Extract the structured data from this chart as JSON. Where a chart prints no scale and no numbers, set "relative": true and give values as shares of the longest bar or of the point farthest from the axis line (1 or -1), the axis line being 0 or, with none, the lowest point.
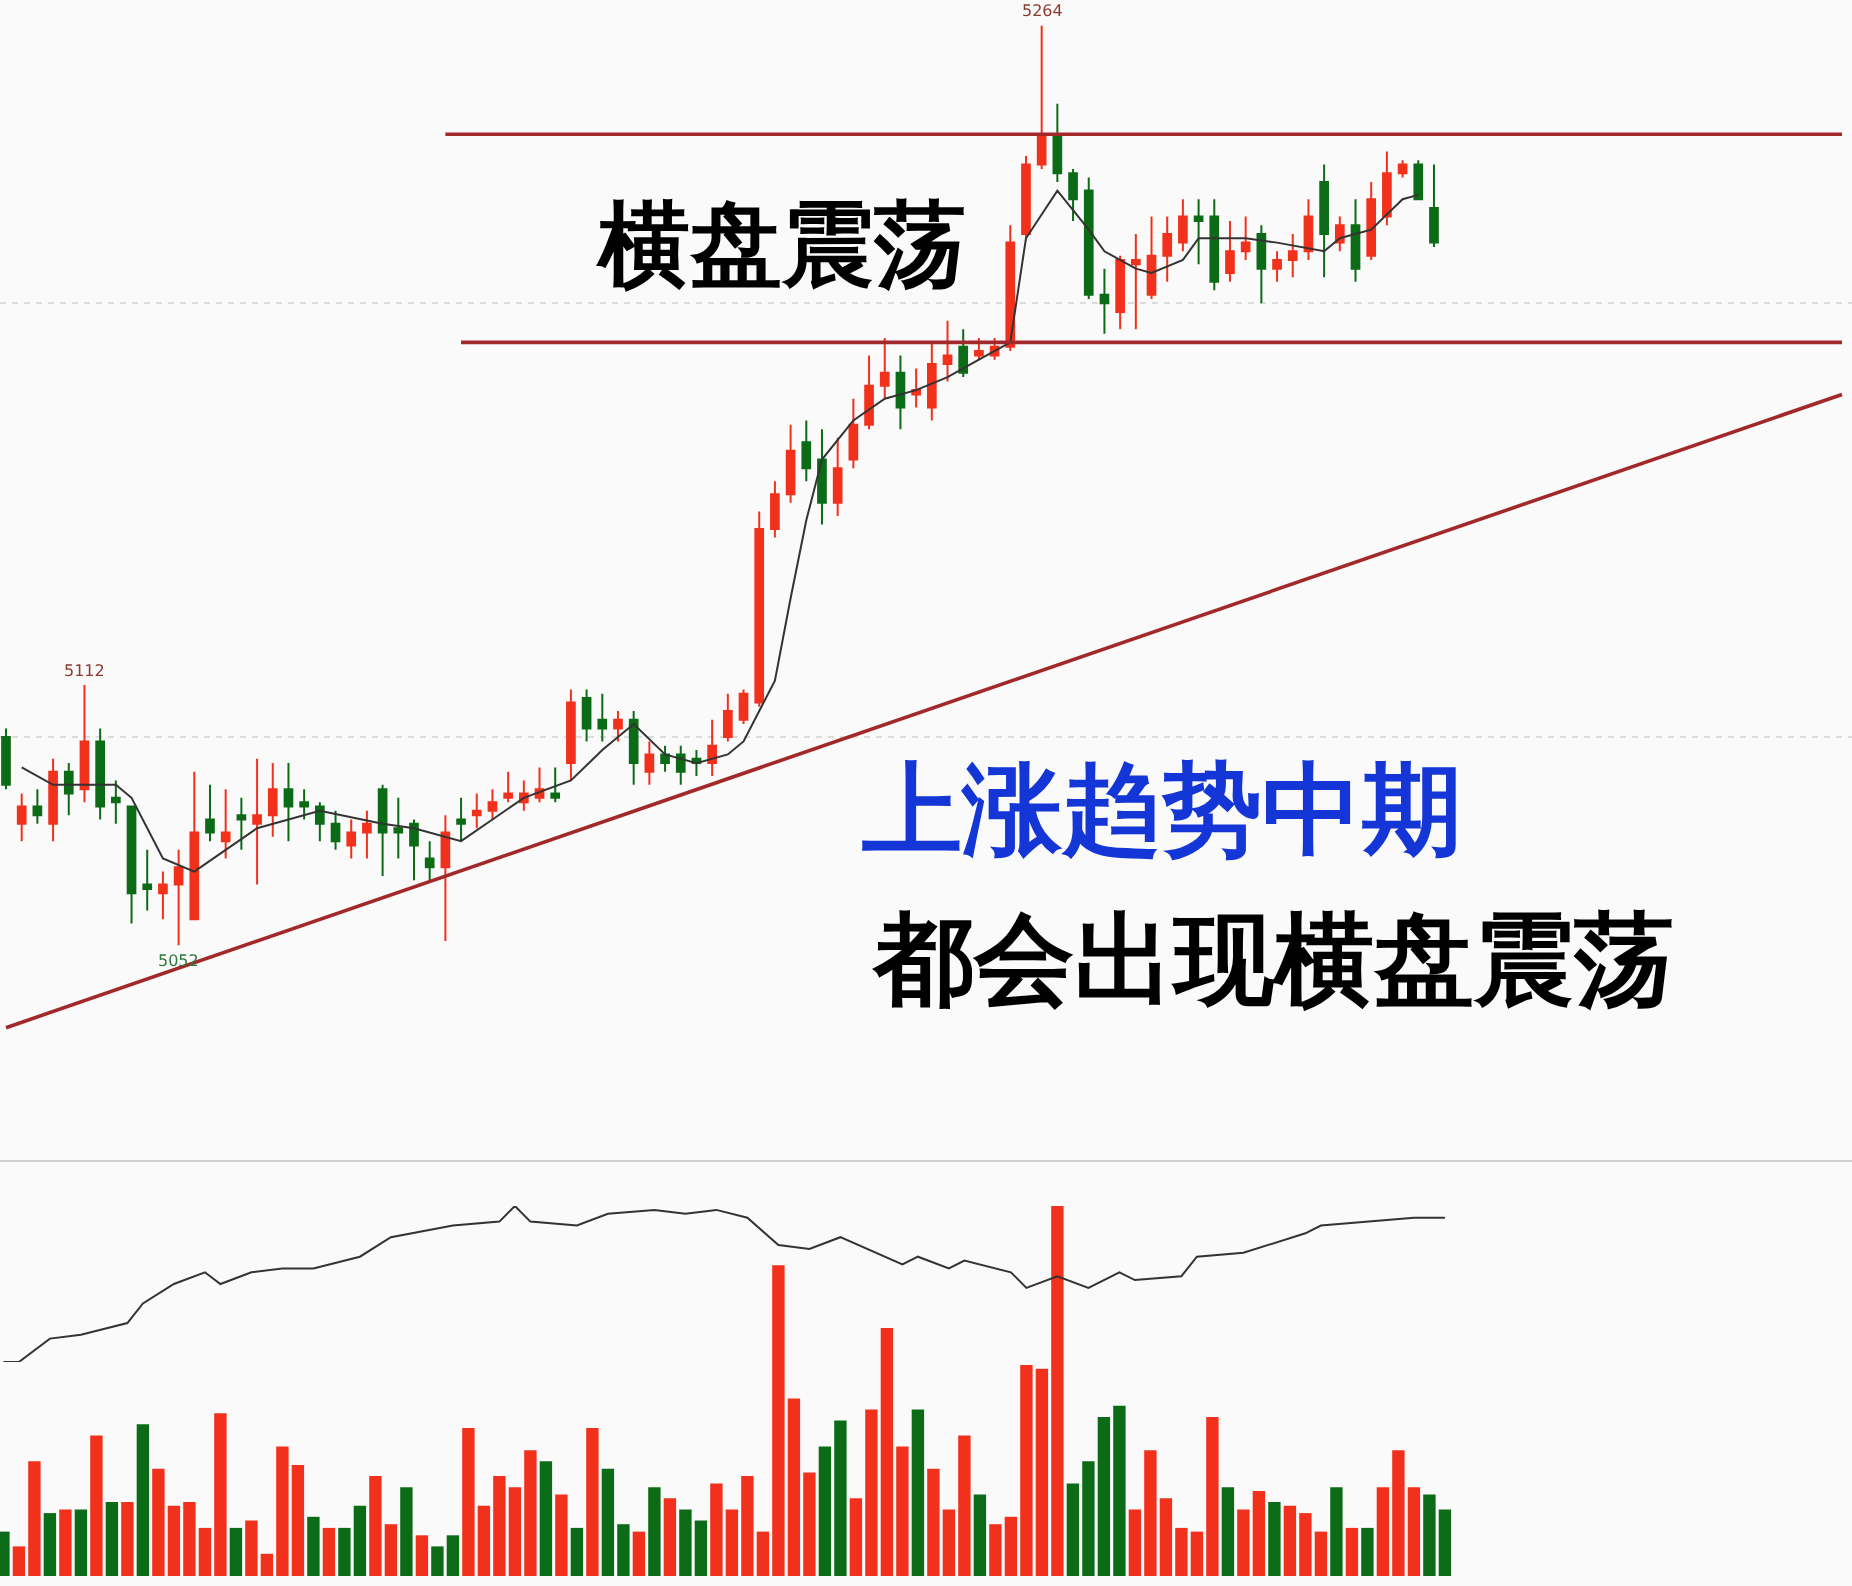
{
  "chart_data": [
    {
      "type": "candlestick",
      "categories": [
        null,
        null,
        null,
        null,
        null,
        null,
        null,
        null,
        null,
        null,
        null,
        null,
        null,
        null,
        null,
        null,
        null,
        null,
        null,
        null,
        null,
        null,
        null,
        null,
        null,
        null,
        null,
        null,
        null,
        null,
        null,
        null,
        null,
        null,
        null,
        null,
        null,
        null,
        null,
        null,
        null,
        null,
        null,
        null,
        null,
        null,
        null,
        null,
        null,
        null,
        null,
        null,
        null,
        null,
        null,
        null,
        null,
        null,
        null,
        null,
        null,
        null,
        null,
        null,
        null,
        null,
        null,
        null,
        null,
        null,
        null,
        null,
        null,
        null,
        null,
        null,
        null,
        null,
        null,
        null,
        null,
        null,
        null,
        null,
        null,
        null,
        null,
        null,
        null,
        null,
        null,
        null,
        null,
        null,
        null,
        null,
        null,
        null,
        null,
        null,
        null,
        null,
        null,
        null,
        null,
        null,
        null,
        null,
        null,
        null,
        null,
        null,
        null,
        null,
        null,
        null,
        null,
        null
      ],
      "ohlc": [
        [
          5100,
          5102,
          5088,
          5089
        ],
        [
          5080,
          5087,
          5076,
          5084
        ],
        [
          5084,
          5088,
          5080,
          5082
        ],
        [
          5080,
          5095,
          5076,
          5092
        ],
        [
          5092,
          5094,
          5082,
          5087
        ],
        [
          5088,
          5112,
          5085,
          5099
        ],
        [
          5099,
          5102,
          5081,
          5084
        ],
        [
          5086,
          5090,
          5080,
          5085
        ],
        [
          5084,
          5084,
          5057,
          5064
        ],
        [
          5066,
          5074,
          5060,
          5065
        ],
        [
          5064,
          5069,
          5058,
          5066
        ],
        [
          5066,
          5074,
          5052,
          5070
        ],
        [
          5058,
          5092,
          5058,
          5078
        ],
        [
          5081,
          5089,
          5076,
          5078
        ],
        [
          5076,
          5088,
          5072,
          5078
        ],
        [
          5082,
          5086,
          5074,
          5081
        ],
        [
          5080,
          5095,
          5066,
          5082
        ],
        [
          5082,
          5094,
          5077,
          5088
        ],
        [
          5088,
          5094,
          5076,
          5084
        ],
        [
          5085,
          5088,
          5081,
          5084
        ],
        [
          5084,
          5085,
          5076,
          5080
        ],
        [
          5080,
          5083,
          5074,
          5076
        ],
        [
          5075,
          5081,
          5072,
          5078
        ],
        [
          5078,
          5083,
          5072,
          5080
        ],
        [
          5088,
          5089,
          5068,
          5078
        ],
        [
          5079,
          5086,
          5072,
          5078
        ],
        [
          5080,
          5081,
          5067,
          5075
        ],
        [
          5072,
          5076,
          5067,
          5070
        ],
        [
          5070,
          5082,
          5053,
          5078
        ],
        [
          5081,
          5086,
          5076,
          5080
        ],
        [
          5082,
          5087,
          5079,
          5083
        ],
        [
          5083,
          5088,
          5081,
          5085
        ],
        [
          5086,
          5092,
          5085,
          5087
        ],
        [
          5085,
          5090,
          5083,
          5087
        ],
        [
          5086,
          5093,
          5085,
          5088
        ],
        [
          5087,
          5093,
          5085,
          5086
        ],
        [
          5094,
          5111,
          5090,
          5108
        ],
        [
          5109,
          5111,
          5099,
          5102
        ],
        [
          5104,
          5110,
          5099,
          5102
        ],
        [
          5102,
          5106,
          5099,
          5104
        ],
        [
          5104,
          5106,
          5089,
          5094
        ],
        [
          5092,
          5099,
          5089,
          5096
        ],
        [
          5096,
          5098,
          5092,
          5094
        ],
        [
          5096,
          5098,
          5089,
          5092
        ],
        [
          5095,
          5097,
          5091,
          5094
        ],
        [
          5094,
          5104,
          5091,
          5098
        ],
        [
          5100,
          5110,
          5099,
          5106
        ],
        [
          5104,
          5111,
          5103,
          5110
        ],
        [
          5108,
          5152,
          5107,
          5148
        ],
        [
          5148,
          5159,
          5146,
          5156
        ],
        [
          5156,
          5172,
          5154,
          5166
        ],
        [
          5168,
          5173,
          5159,
          5162
        ],
        [
          5164,
          5171,
          5149,
          5154
        ],
        [
          5154,
          5169,
          5151,
          5162
        ],
        [
          5164,
          5178,
          5162,
          5172
        ],
        [
          5172,
          5188,
          5171,
          5181
        ],
        [
          5181,
          5192,
          5178,
          5184
        ],
        [
          5184,
          5188,
          5171,
          5176
        ],
        [
          5179,
          5185,
          5176,
          5180
        ],
        [
          5176,
          5191,
          5173,
          5186
        ],
        [
          5186,
          5196,
          5182,
          5188
        ],
        [
          5190,
          5194,
          5183,
          5184
        ],
        [
          5188,
          5192,
          5187,
          5189
        ],
        [
          5188,
          5192,
          5187,
          5190
        ],
        [
          5190,
          5218,
          5189,
          5214
        ],
        [
          5216,
          5234,
          5215,
          5232
        ],
        [
          5232,
          5264,
          5231,
          5239
        ],
        [
          5239,
          5246,
          5228,
          5230
        ],
        [
          5230,
          5231,
          5219,
          5224
        ],
        [
          5226,
          5229,
          5201,
          5202
        ],
        [
          5202,
          5208,
          5193,
          5200
        ],
        [
          5198,
          5211,
          5194,
          5210
        ],
        [
          5209,
          5216,
          5194,
          5210
        ],
        [
          5202,
          5220,
          5201,
          5211
        ],
        [
          5211,
          5220,
          5205,
          5216
        ],
        [
          5214,
          5224,
          5212,
          5220
        ],
        [
          5220,
          5224,
          5209,
          5219
        ],
        [
          5220,
          5224,
          5203,
          5205
        ],
        [
          5207,
          5219,
          5205,
          5212
        ],
        [
          5212,
          5220,
          5210,
          5214
        ],
        [
          5216,
          5218,
          5200,
          5208
        ],
        [
          5208,
          5212,
          5205,
          5210
        ],
        [
          5210,
          5216,
          5206,
          5212
        ],
        [
          5212,
          5224,
          5210,
          5220
        ],
        [
          5228,
          5232,
          5206,
          5216
        ],
        [
          5214,
          5220,
          5212,
          5218
        ],
        [
          5218,
          5224,
          5205,
          5208
        ],
        [
          5211,
          5228,
          5210,
          5224
        ],
        [
          5220,
          5235,
          5218,
          5230
        ],
        [
          5230,
          5233,
          5229,
          5232
        ],
        [
          5232,
          5233,
          5224,
          5224
        ],
        [
          5222,
          5232,
          5213,
          5214
        ],
        null,
        null,
        null,
        null,
        null,
        null,
        null,
        null,
        null,
        null,
        null,
        null,
        null,
        null,
        null,
        null,
        null,
        null,
        null,
        null,
        null,
        null,
        null,
        null,
        null,
        null
      ],
      "colors": [
        "#0c6b17",
        "#f2311c",
        "#0c6b17",
        "#f2311c",
        "#0c6b17",
        "#f2311c",
        "#0c6b17",
        "#0c6b17",
        "#0c6b17",
        "#0c6b17",
        "#f2311c",
        "#f2311c",
        "#f2311c",
        "#0c6b17",
        "#f2311c",
        "#0c6b17",
        "#f2311c",
        "#f2311c",
        "#0c6b17",
        "#0c6b17",
        "#0c6b17",
        "#0c6b17",
        "#f2311c",
        "#f2311c",
        "#0c6b17",
        "#0c6b17",
        "#0c6b17",
        "#0c6b17",
        "#f2311c",
        "#0c6b17",
        "#f2311c",
        "#f2311c",
        "#f2311c",
        "#f2311c",
        "#f2311c",
        "#0c6b17",
        "#f2311c",
        "#0c6b17",
        "#0c6b17",
        "#f2311c",
        "#0c6b17",
        "#f2311c",
        "#0c6b17",
        "#0c6b17",
        "#0c6b17",
        "#f2311c",
        "#f2311c",
        "#f2311c",
        "#f2311c",
        "#f2311c",
        "#f2311c",
        "#0c6b17",
        "#0c6b17",
        "#f2311c",
        "#f2311c",
        "#f2311c",
        "#f2311c",
        "#0c6b17",
        "#f2311c",
        "#f2311c",
        "#f2311c",
        "#0c6b17",
        "#f2311c",
        "#f2311c",
        "#f2311c",
        "#f2311c",
        "#f2311c",
        "#0c6b17",
        "#0c6b17",
        "#0c6b17",
        "#0c6b17",
        "#f2311c",
        "#f2311c",
        "#f2311c",
        "#f2311c",
        "#f2311c",
        "#0c6b17",
        "#0c6b17",
        "#f2311c",
        "#f2311c",
        "#0c6b17",
        "#f2311c",
        "#f2311c",
        "#f2311c",
        "#0c6b17",
        "#f2311c",
        "#0c6b17",
        "#f2311c",
        "#f2311c",
        "#f2311c",
        "#0c6b17",
        "#0c6b17",
        null,
        null,
        null,
        null,
        null,
        null,
        null,
        null,
        null,
        null,
        null,
        null,
        null,
        null,
        null,
        null,
        null,
        null,
        null,
        null,
        null,
        null,
        null,
        null,
        null,
        null
      ],
      "series": [
        {
          "type": "line",
          "color": "#333333",
          "values": [
            null,
            5093,
            null,
            5089,
            null,
            null,
            null,
            5089,
            5086,
            null,
            5072,
            null,
            5069,
            null,
            5074,
            null,
            5079,
            null,
            null,
            null,
            5083,
            null,
            null,
            null,
            5080,
            null,
            5079,
            null,
            null,
            5076,
            null,
            5081,
            null,
            5086,
            null,
            null,
            5090,
            null,
            5097,
            null,
            5103,
            null,
            5096,
            null,
            5094,
            null,
            5096,
            5099,
            null,
            5113,
            5132,
            5150,
            5164,
            null,
            5173,
            null,
            5178,
            null,
            5180,
            null,
            5183,
            5185,
            5187,
            null,
            5191,
            5215,
            null,
            5226,
            null,
            5217,
            5212,
            null,
            5208,
            5207,
            null,
            5210,
            5215,
            null,
            null,
            5215,
            null,
            5214,
            null,
            null,
            5212,
            5215,
            null,
            5217,
            null,
            5224,
            5225,
            null,
            null,
            null,
            null,
            null,
            null,
            null,
            null,
            null,
            null,
            null,
            null,
            null,
            null,
            null,
            null,
            null,
            null,
            null,
            null,
            null,
            null,
            null,
            null,
            null,
            null,
            null
          ]
        },
        {
          "type": "line",
          "color": "#a3282a",
          "values": [
            5033,
            null,
            null,
            null,
            null,
            null,
            null,
            null,
            null,
            null,
            null,
            null,
            null,
            null,
            null,
            null,
            null,
            null,
            null,
            null,
            null,
            null,
            null,
            null,
            null,
            null,
            null,
            null,
            null,
            null,
            null,
            null,
            null,
            null,
            null,
            null,
            null,
            null,
            null,
            null,
            null,
            null,
            null,
            null,
            null,
            null,
            null,
            null,
            null,
            null,
            null,
            null,
            null,
            null,
            null,
            null,
            null,
            null,
            null,
            null,
            null,
            null,
            null,
            null,
            null,
            null,
            null,
            null,
            null,
            null,
            null,
            null,
            null,
            null,
            null,
            null,
            null,
            null,
            null,
            null,
            null,
            null,
            null,
            null,
            null,
            null,
            null,
            null,
            null,
            null,
            null,
            null,
            null,
            null,
            null,
            null,
            null,
            null,
            null,
            null,
            null,
            null,
            null,
            null,
            null,
            null,
            null,
            null,
            null,
            null,
            null,
            null,
            null,
            null,
            null,
            null,
            null,
            5179
          ]
        },
        {
          "type": "line",
          "color": "#a3282a",
          "values": [
            null,
            null,
            null,
            null,
            null,
            null,
            null,
            null,
            null,
            null,
            null,
            null,
            null,
            null,
            null,
            null,
            null,
            null,
            null,
            null,
            null,
            null,
            null,
            null,
            null,
            null,
            null,
            null,
            5239,
            null,
            null,
            null,
            null,
            null,
            null,
            null,
            null,
            null,
            null,
            null,
            null,
            null,
            null,
            null,
            null,
            null,
            null,
            null,
            null,
            null,
            null,
            null,
            null,
            null,
            null,
            null,
            null,
            null,
            null,
            null,
            null,
            null,
            null,
            null,
            null,
            null,
            null,
            null,
            null,
            null,
            null,
            null,
            null,
            null,
            null,
            null,
            null,
            null,
            null,
            null,
            null,
            null,
            null,
            null,
            null,
            null,
            null,
            null,
            null,
            null,
            null,
            null,
            null,
            null,
            null,
            null,
            null,
            null,
            null,
            null,
            null,
            null,
            null,
            null,
            null,
            null,
            null,
            null,
            null,
            null,
            null,
            null,
            null,
            null,
            null,
            null,
            null,
            5239
          ]
        },
        {
          "type": "line",
          "color": "#a3282a",
          "values": [
            null,
            null,
            null,
            null,
            null,
            null,
            null,
            null,
            null,
            null,
            null,
            null,
            null,
            null,
            null,
            null,
            null,
            null,
            null,
            null,
            null,
            null,
            null,
            null,
            null,
            null,
            null,
            null,
            null,
            5191,
            null,
            null,
            null,
            null,
            null,
            null,
            null,
            null,
            null,
            null,
            null,
            null,
            null,
            null,
            null,
            null,
            null,
            null,
            null,
            null,
            null,
            null,
            null,
            null,
            null,
            null,
            null,
            null,
            null,
            null,
            null,
            null,
            null,
            null,
            null,
            null,
            null,
            null,
            null,
            null,
            null,
            null,
            null,
            null,
            null,
            null,
            null,
            null,
            null,
            null,
            null,
            null,
            null,
            null,
            null,
            null,
            null,
            null,
            null,
            null,
            null,
            null,
            null,
            null,
            null,
            null,
            null,
            null,
            null,
            null,
            null,
            null,
            null,
            null,
            null,
            null,
            null,
            null,
            null,
            null,
            null,
            null,
            null,
            null,
            null,
            null,
            null,
            5191
          ]
        }
      ],
      "yticks": [
        {
          "value": 5100,
          "label": null
        },
        {
          "value": 5200,
          "label": null
        }
      ],
      "grid": "y",
      "tick_labels": false,
      "annotations": [
        "横盘震荡",
        "上涨趋势中期",
        "都会出现横盘震荡",
        {
          "text": "5264",
          "y": 5264
        },
        {
          "text": "5112",
          "y": 5112
        },
        {
          "text": "5052",
          "y": 5052
        }
      ]
    },
    {
      "type": "bar",
      "relative": true,
      "tick_labels": false,
      "categories": [
        null,
        null,
        null,
        null,
        null,
        null,
        null,
        null,
        null,
        null,
        null,
        null,
        null,
        null,
        null,
        null,
        null,
        null,
        null,
        null,
        null,
        null,
        null,
        null,
        null,
        null,
        null,
        null,
        null,
        null,
        null,
        null,
        null,
        null,
        null,
        null,
        null,
        null,
        null,
        null,
        null,
        null,
        null,
        null,
        null,
        null,
        null,
        null,
        null,
        null,
        null,
        null,
        null,
        null,
        null,
        null,
        null,
        null,
        null,
        null,
        null,
        null,
        null,
        null,
        null,
        null,
        null,
        null,
        null,
        null,
        null,
        null,
        null,
        null,
        null,
        null,
        null,
        null,
        null,
        null,
        null,
        null,
        null,
        null,
        null,
        null,
        null,
        null,
        null,
        null,
        null,
        null,
        null,
        null
      ],
      "values": [
        0.12,
        0.08,
        0.31,
        0.17,
        0.18,
        0.18,
        0.38,
        0.2,
        0.2,
        0.41,
        0.29,
        0.19,
        0.2,
        0.13,
        0.44,
        0.13,
        0.15,
        0.06,
        0.35,
        0.3,
        0.16,
        0.13,
        0.13,
        0.19,
        0.27,
        0.14,
        0.24,
        0.11,
        0.08,
        0.11,
        0.4,
        0.19,
        0.27,
        0.24,
        0.34,
        0.31,
        0.22,
        0.13,
        0.4,
        0.29,
        0.14,
        0.12,
        0.24,
        0.21,
        0.18,
        0.15,
        0.25,
        0.18,
        0.27,
        0.12,
        0.84,
        0.48,
        0.28,
        0.35,
        0.42,
        0.21,
        0.45,
        0.67,
        0.35,
        0.45,
        0.29,
        0.18,
        0.38,
        0.22,
        0.14,
        0.16,
        0.57,
        0.56,
        1.0,
        0.25,
        0.31,
        0.43,
        0.46,
        0.18,
        0.34,
        0.21,
        0.13,
        0.12,
        0.43,
        0.24,
        0.18,
        0.23,
        0.2,
        0.19,
        0.17,
        0.12,
        0.24,
        0.13,
        0.13,
        0.24,
        0.34,
        0.24,
        0.22,
        0.18
      ],
      "colors": [
        "#0c6b17",
        "#f2311c",
        "#f2311c",
        "#0c6b17",
        "#f2311c",
        "#0c6b17",
        "#f2311c",
        "#0c6b17",
        "#f2311c",
        "#0c6b17",
        "#f2311c",
        "#f2311c",
        "#f2311c",
        "#f2311c",
        "#f2311c",
        "#0c6b17",
        "#f2311c",
        "#f2311c",
        "#f2311c",
        "#f2311c",
        "#0c6b17",
        "#f2311c",
        "#0c6b17",
        "#0c6b17",
        "#f2311c",
        "#f2311c",
        "#0c6b17",
        "#f2311c",
        "#0c6b17",
        "#0c6b17",
        "#f2311c",
        "#f2311c",
        "#f2311c",
        "#f2311c",
        "#f2311c",
        "#0c6b17",
        "#f2311c",
        "#0c6b17",
        "#f2311c",
        "#0c6b17",
        "#0c6b17",
        "#f2311c",
        "#0c6b17",
        "#f2311c",
        "#0c6b17",
        "#0c6b17",
        "#f2311c",
        "#f2311c",
        "#f2311c",
        "#f2311c",
        "#f2311c",
        "#f2311c",
        "#f2311c",
        "#0c6b17",
        "#0c6b17",
        "#f2311c",
        "#f2311c",
        "#f2311c",
        "#f2311c",
        "#0c6b17",
        "#f2311c",
        "#f2311c",
        "#f2311c",
        "#0c6b17",
        "#f2311c",
        "#f2311c",
        "#f2311c",
        "#f2311c",
        "#f2311c",
        "#0c6b17",
        "#0c6b17",
        "#0c6b17",
        "#0c6b17",
        "#f2311c",
        "#f2311c",
        "#f2311c",
        "#f2311c",
        "#f2311c",
        "#f2311c",
        "#0c6b17",
        "#f2311c",
        "#f2311c",
        "#0c6b17",
        "#f2311c",
        "#f2311c",
        "#f2311c",
        "#0c6b17",
        "#f2311c",
        "#0c6b17",
        "#f2311c",
        "#f2311c",
        "#f2311c",
        "#0c6b17",
        "#0c6b17"
      ]
    },
    {
      "type": "line",
      "relative": true,
      "tick_labels": false,
      "color": "#333333",
      "categories": [
        null,
        null,
        null,
        null,
        null,
        null,
        null,
        null,
        null,
        null,
        null,
        null,
        null,
        null,
        null,
        null,
        null,
        null,
        null,
        null,
        null,
        null,
        null,
        null,
        null,
        null,
        null,
        null,
        null,
        null,
        null,
        null,
        null,
        null,
        null,
        null,
        null,
        null,
        null,
        null,
        null,
        null,
        null,
        null,
        null,
        null,
        null,
        null,
        null,
        null,
        null,
        null,
        null,
        null,
        null,
        null,
        null,
        null,
        null,
        null,
        null,
        null,
        null,
        null,
        null,
        null,
        null,
        null,
        null,
        null,
        null,
        null,
        null,
        null,
        null,
        null,
        null,
        null,
        null,
        null,
        null,
        null,
        null,
        null,
        null,
        null,
        null,
        null,
        null,
        null,
        null,
        null,
        null,
        null
      ],
      "values": [
        0,
        0,
        null,
        0.15,
        null,
        0.175,
        null,
        null,
        0.25,
        0.375,
        null,
        0.5,
        null,
        0.575,
        0.5,
        null,
        0.575,
        null,
        0.6,
        null,
        0.6,
        null,
        null,
        0.675,
        null,
        0.8,
        null,
        null,
        null,
        0.875,
        null,
        null,
        0.9,
        1,
        0.9,
        null,
        null,
        0.875,
        null,
        0.95,
        null,
        null,
        0.975,
        null,
        0.95,
        null,
        0.975,
        null,
        0.925,
        null,
        0.75,
        null,
        0.725,
        null,
        0.8,
        null,
        null,
        null,
        0.625,
        0.675,
        null,
        0.6,
        0.65,
        null,
        null,
        0.575,
        0.475,
        null,
        0.55,
        null,
        0.475,
        null,
        0.575,
        0.525,
        null,
        null,
        0.55,
        0.675,
        null,
        null,
        0.7,
        null,
        null,
        null,
        0.825,
        0.875,
        null,
        null,
        null,
        null,
        null,
        0.925,
        null,
        0.925
      ]
    }
  ]
}
